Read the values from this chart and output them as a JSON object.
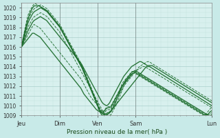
{
  "background_color": "#c8eae8",
  "plot_bg_color": "#d8f0ee",
  "grid_color_major": "#a0c8c4",
  "grid_color_minor": "#b8dcd8",
  "line_color": "#1a6b2a",
  "xlabel": "Pression niveau de la mer( hPa )",
  "ylim": [
    1009,
    1020.5
  ],
  "yticks": [
    1009,
    1010,
    1011,
    1012,
    1013,
    1014,
    1015,
    1016,
    1017,
    1018,
    1019,
    1020
  ],
  "xtick_labels": [
    "Jeu",
    "Dim",
    "Ven",
    "Sam",
    "Lun"
  ],
  "xtick_positions": [
    0,
    24,
    48,
    72,
    120
  ],
  "xlim": [
    0,
    120
  ],
  "figsize": [
    3.2,
    2.0
  ],
  "dpi": 100,
  "line_styles": [
    "-",
    "--",
    "-",
    "--",
    "-",
    "--",
    "-",
    "--"
  ],
  "line_widths": [
    1.0,
    0.7,
    1.0,
    0.7,
    1.0,
    0.7,
    1.0,
    0.7
  ],
  "lines": [
    [
      1016.0,
      1016.2,
      1016.4,
      1016.6,
      1016.8,
      1017.0,
      1017.2,
      1017.4,
      1017.4,
      1017.3,
      1017.2,
      1017.1,
      1017.0,
      1016.8,
      1016.6,
      1016.4,
      1016.2,
      1016.0,
      1015.8,
      1015.6,
      1015.4,
      1015.2,
      1015.0,
      1014.8,
      1014.6,
      1014.4,
      1014.2,
      1014.0,
      1013.8,
      1013.6,
      1013.4,
      1013.2,
      1013.0,
      1012.8,
      1012.6,
      1012.4,
      1012.2,
      1012.0,
      1011.8,
      1011.5,
      1011.2,
      1011.0,
      1010.8,
      1010.6,
      1010.4,
      1010.2,
      1010.0,
      1009.8,
      1009.6,
      1009.5,
      1009.4,
      1009.3,
      1009.2,
      1009.1,
      1009.0,
      1009.1,
      1009.2,
      1009.4,
      1009.6,
      1009.8,
      1010.0,
      1010.2,
      1010.4,
      1010.6,
      1010.8,
      1011.0,
      1011.2,
      1011.4,
      1011.6,
      1011.8,
      1012.0,
      1012.2,
      1012.4,
      1012.6,
      1012.8,
      1013.0,
      1013.2,
      1013.4,
      1013.6,
      1013.8,
      1014.0,
      1014.0,
      1014.0,
      1013.9,
      1013.8,
      1013.7,
      1013.6,
      1013.5,
      1013.4,
      1013.3,
      1013.2,
      1013.1,
      1013.0,
      1012.9,
      1012.8,
      1012.7,
      1012.6,
      1012.5,
      1012.4,
      1012.3,
      1012.2,
      1012.1,
      1012.0,
      1011.9,
      1011.8,
      1011.7,
      1011.6,
      1011.5,
      1011.4,
      1011.3,
      1011.2,
      1011.1,
      1011.0,
      1010.9,
      1010.8,
      1010.7,
      1010.6,
      1010.5,
      1010.4,
      1010.3,
      1010.2,
      1010.1,
      1010.0
    ],
    [
      1016.0,
      1016.3,
      1016.6,
      1016.9,
      1017.2,
      1017.5,
      1017.8,
      1018.1,
      1018.3,
      1018.2,
      1018.1,
      1018.0,
      1017.9,
      1017.7,
      1017.5,
      1017.3,
      1017.1,
      1016.9,
      1016.7,
      1016.5,
      1016.3,
      1016.1,
      1015.9,
      1015.7,
      1015.5,
      1015.3,
      1015.1,
      1014.9,
      1014.7,
      1014.5,
      1014.3,
      1014.1,
      1013.9,
      1013.7,
      1013.5,
      1013.3,
      1013.1,
      1012.9,
      1012.7,
      1012.4,
      1012.1,
      1011.8,
      1011.5,
      1011.2,
      1010.9,
      1010.7,
      1010.5,
      1010.3,
      1010.1,
      1009.9,
      1009.7,
      1009.5,
      1009.3,
      1009.2,
      1009.1,
      1009.2,
      1009.4,
      1009.6,
      1009.9,
      1010.2,
      1010.5,
      1010.8,
      1011.1,
      1011.4,
      1011.7,
      1012.0,
      1012.2,
      1012.4,
      1012.6,
      1012.8,
      1013.0,
      1013.2,
      1013.4,
      1013.6,
      1013.8,
      1014.0,
      1014.1,
      1014.2,
      1014.3,
      1014.4,
      1014.5,
      1014.5,
      1014.4,
      1014.3,
      1014.2,
      1014.1,
      1014.0,
      1013.9,
      1013.8,
      1013.7,
      1013.6,
      1013.5,
      1013.4,
      1013.3,
      1013.2,
      1013.1,
      1013.0,
      1012.9,
      1012.8,
      1012.7,
      1012.6,
      1012.5,
      1012.4,
      1012.3,
      1012.2,
      1012.1,
      1012.0,
      1011.9,
      1011.8,
      1011.7,
      1011.6,
      1011.5,
      1011.4,
      1011.3,
      1011.2,
      1011.1,
      1011.0,
      1010.9,
      1010.8,
      1010.7,
      1010.6,
      1010.5
    ],
    [
      1016.0,
      1016.4,
      1016.8,
      1017.2,
      1017.6,
      1017.9,
      1018.2,
      1018.5,
      1018.7,
      1018.8,
      1018.9,
      1019.0,
      1019.1,
      1019.0,
      1018.9,
      1018.8,
      1018.7,
      1018.5,
      1018.3,
      1018.1,
      1017.9,
      1017.7,
      1017.5,
      1017.3,
      1017.1,
      1016.9,
      1016.7,
      1016.5,
      1016.3,
      1016.1,
      1015.9,
      1015.7,
      1015.5,
      1015.3,
      1015.1,
      1014.9,
      1014.7,
      1014.5,
      1014.3,
      1014.0,
      1013.7,
      1013.4,
      1013.1,
      1012.8,
      1012.5,
      1012.2,
      1011.9,
      1011.6,
      1011.3,
      1011.0,
      1010.7,
      1010.4,
      1010.2,
      1010.1,
      1010.0,
      1010.1,
      1010.3,
      1010.6,
      1010.9,
      1011.2,
      1011.5,
      1011.8,
      1012.1,
      1012.4,
      1012.7,
      1013.0,
      1013.2,
      1013.4,
      1013.6,
      1013.8,
      1014.0,
      1014.1,
      1014.2,
      1014.3,
      1014.4,
      1014.5,
      1014.5,
      1014.4,
      1014.3,
      1014.2,
      1014.1,
      1014.1,
      1014.1,
      1014.1,
      1014.0,
      1013.9,
      1013.8,
      1013.7,
      1013.6,
      1013.5,
      1013.4,
      1013.3,
      1013.2,
      1013.1,
      1013.0,
      1012.9,
      1012.8,
      1012.7,
      1012.6,
      1012.5,
      1012.4,
      1012.3,
      1012.2,
      1012.1,
      1012.0,
      1011.9,
      1011.8,
      1011.7,
      1011.6,
      1011.5,
      1011.4,
      1011.3,
      1011.2,
      1011.1,
      1011.0,
      1010.9,
      1010.8,
      1010.7,
      1010.6,
      1010.5,
      1010.4,
      1010.3
    ],
    [
      1016.0,
      1016.5,
      1017.0,
      1017.5,
      1018.0,
      1018.3,
      1018.6,
      1018.9,
      1019.1,
      1019.2,
      1019.3,
      1019.4,
      1019.5,
      1019.4,
      1019.3,
      1019.2,
      1019.1,
      1018.9,
      1018.7,
      1018.5,
      1018.3,
      1018.1,
      1017.9,
      1017.7,
      1017.5,
      1017.2,
      1016.9,
      1016.6,
      1016.3,
      1016.0,
      1015.7,
      1015.4,
      1015.1,
      1014.8,
      1014.5,
      1014.2,
      1013.9,
      1013.6,
      1013.3,
      1013.0,
      1012.7,
      1012.4,
      1012.1,
      1011.8,
      1011.5,
      1011.2,
      1010.9,
      1010.6,
      1010.3,
      1010.0,
      1009.7,
      1009.4,
      1009.2,
      1009.1,
      1009.0,
      1009.0,
      1009.1,
      1009.4,
      1009.7,
      1010.0,
      1010.4,
      1010.8,
      1011.2,
      1011.6,
      1012.0,
      1012.4,
      1012.6,
      1012.8,
      1013.0,
      1013.2,
      1013.4,
      1013.5,
      1013.6,
      1013.7,
      1013.8,
      1013.9,
      1014.0,
      1014.0,
      1013.9,
      1013.8,
      1013.7,
      1013.6,
      1013.5,
      1013.4,
      1013.3,
      1013.2,
      1013.1,
      1013.0,
      1012.9,
      1012.8,
      1012.7,
      1012.6,
      1012.5,
      1012.4,
      1012.3,
      1012.2,
      1012.1,
      1012.0,
      1011.9,
      1011.8,
      1011.7,
      1011.6,
      1011.5,
      1011.4,
      1011.3,
      1011.2,
      1011.1,
      1011.0,
      1010.9,
      1010.8,
      1010.7,
      1010.6,
      1010.5,
      1010.4,
      1010.3,
      1010.2,
      1010.1,
      1010.0,
      1009.9,
      1009.8
    ],
    [
      1016.0,
      1016.6,
      1017.2,
      1017.8,
      1018.4,
      1018.8,
      1019.1,
      1019.4,
      1019.6,
      1019.7,
      1019.8,
      1019.9,
      1020.0,
      1019.9,
      1019.8,
      1019.7,
      1019.6,
      1019.4,
      1019.2,
      1019.0,
      1018.8,
      1018.6,
      1018.4,
      1018.2,
      1018.0,
      1017.7,
      1017.4,
      1017.1,
      1016.8,
      1016.5,
      1016.2,
      1015.9,
      1015.6,
      1015.3,
      1015.0,
      1014.7,
      1014.4,
      1014.1,
      1013.8,
      1013.4,
      1013.0,
      1012.6,
      1012.2,
      1011.8,
      1011.4,
      1011.0,
      1010.6,
      1010.2,
      1009.8,
      1009.4,
      1009.1,
      1009.0,
      1009.1,
      1009.2,
      1009.3,
      1009.3,
      1009.4,
      1009.7,
      1010.0,
      1010.4,
      1010.8,
      1011.2,
      1011.6,
      1012.0,
      1012.3,
      1012.6,
      1012.8,
      1013.0,
      1013.2,
      1013.4,
      1013.5,
      1013.6,
      1013.5,
      1013.4,
      1013.3,
      1013.2,
      1013.1,
      1013.0,
      1012.9,
      1012.8,
      1012.7,
      1012.6,
      1012.5,
      1012.4,
      1012.3,
      1012.2,
      1012.1,
      1012.0,
      1011.9,
      1011.8,
      1011.7,
      1011.6,
      1011.5,
      1011.4,
      1011.3,
      1011.2,
      1011.1,
      1011.0,
      1010.9,
      1010.8,
      1010.7,
      1010.6,
      1010.5,
      1010.4,
      1010.3,
      1010.2,
      1010.1,
      1010.0,
      1009.9,
      1009.8,
      1009.7,
      1009.6,
      1009.5,
      1009.4,
      1009.3,
      1009.2,
      1009.1,
      1009.0,
      1009.0,
      1009.1
    ],
    [
      1016.0,
      1016.7,
      1017.4,
      1018.1,
      1018.7,
      1019.1,
      1019.4,
      1019.7,
      1019.9,
      1020.0,
      1020.1,
      1020.2,
      1020.3,
      1020.2,
      1020.1,
      1020.0,
      1019.9,
      1019.7,
      1019.5,
      1019.3,
      1019.1,
      1018.9,
      1018.7,
      1018.5,
      1018.3,
      1018.0,
      1017.7,
      1017.4,
      1017.1,
      1016.8,
      1016.5,
      1016.2,
      1015.9,
      1015.6,
      1015.3,
      1015.0,
      1014.7,
      1014.4,
      1014.1,
      1013.7,
      1013.3,
      1012.9,
      1012.5,
      1012.1,
      1011.7,
      1011.3,
      1010.9,
      1010.5,
      1010.1,
      1009.7,
      1009.4,
      1009.2,
      1009.3,
      1009.5,
      1009.6,
      1009.6,
      1009.7,
      1010.0,
      1010.3,
      1010.7,
      1011.1,
      1011.5,
      1011.9,
      1012.3,
      1012.5,
      1012.7,
      1012.9,
      1013.1,
      1013.3,
      1013.5,
      1013.5,
      1013.5,
      1013.4,
      1013.3,
      1013.2,
      1013.1,
      1013.0,
      1012.9,
      1012.8,
      1012.7,
      1012.6,
      1012.5,
      1012.4,
      1012.3,
      1012.2,
      1012.1,
      1012.0,
      1011.9,
      1011.8,
      1011.7,
      1011.6,
      1011.5,
      1011.4,
      1011.3,
      1011.2,
      1011.1,
      1011.0,
      1010.9,
      1010.8,
      1010.7,
      1010.6,
      1010.5,
      1010.4,
      1010.3,
      1010.2,
      1010.1,
      1010.0,
      1009.9,
      1009.8,
      1009.7,
      1009.6,
      1009.5,
      1009.4,
      1009.3,
      1009.2,
      1009.1,
      1009.0,
      1009.1,
      1009.2,
      1009.3
    ],
    [
      1016.0,
      1016.8,
      1017.5,
      1018.2,
      1018.8,
      1019.3,
      1019.7,
      1020.0,
      1020.2,
      1020.2,
      1020.2,
      1020.2,
      1020.1,
      1020.0,
      1019.9,
      1019.8,
      1019.7,
      1019.5,
      1019.3,
      1019.1,
      1018.9,
      1018.7,
      1018.5,
      1018.3,
      1018.1,
      1017.8,
      1017.5,
      1017.2,
      1016.9,
      1016.6,
      1016.3,
      1016.0,
      1015.7,
      1015.4,
      1015.1,
      1014.8,
      1014.5,
      1014.2,
      1013.9,
      1013.5,
      1013.1,
      1012.7,
      1012.3,
      1011.9,
      1011.5,
      1011.1,
      1010.7,
      1010.3,
      1009.9,
      1009.5,
      1009.3,
      1009.3,
      1009.5,
      1009.7,
      1009.8,
      1009.8,
      1009.9,
      1010.2,
      1010.5,
      1010.8,
      1011.1,
      1011.4,
      1011.7,
      1012.0,
      1012.2,
      1012.4,
      1012.6,
      1012.8,
      1013.0,
      1013.2,
      1013.3,
      1013.4,
      1013.3,
      1013.2,
      1013.1,
      1013.0,
      1012.9,
      1012.8,
      1012.7,
      1012.6,
      1012.5,
      1012.4,
      1012.3,
      1012.2,
      1012.1,
      1012.0,
      1011.9,
      1011.8,
      1011.7,
      1011.6,
      1011.5,
      1011.4,
      1011.3,
      1011.2,
      1011.1,
      1011.0,
      1010.9,
      1010.8,
      1010.7,
      1010.6,
      1010.5,
      1010.4,
      1010.3,
      1010.2,
      1010.1,
      1010.0,
      1009.9,
      1009.8,
      1009.7,
      1009.6,
      1009.5,
      1009.4,
      1009.3,
      1009.2,
      1009.1,
      1009.0,
      1009.1,
      1009.2,
      1009.4,
      1009.5
    ],
    [
      1016.0,
      1016.9,
      1017.7,
      1018.5,
      1019.2,
      1019.6,
      1019.9,
      1020.2,
      1020.4,
      1020.4,
      1020.3,
      1020.2,
      1020.1,
      1020.0,
      1019.9,
      1019.8,
      1019.7,
      1019.5,
      1019.3,
      1019.1,
      1018.9,
      1018.7,
      1018.5,
      1018.3,
      1018.1,
      1017.8,
      1017.5,
      1017.2,
      1016.9,
      1016.6,
      1016.3,
      1016.0,
      1015.7,
      1015.4,
      1015.1,
      1014.8,
      1014.5,
      1014.2,
      1013.9,
      1013.5,
      1013.1,
      1012.7,
      1012.3,
      1011.9,
      1011.5,
      1011.1,
      1010.7,
      1010.3,
      1009.9,
      1009.5,
      1009.3,
      1009.4,
      1009.6,
      1009.8,
      1009.9,
      1009.9,
      1010.0,
      1010.3,
      1010.6,
      1010.9,
      1011.2,
      1011.5,
      1011.8,
      1012.1,
      1012.3,
      1012.5,
      1012.7,
      1012.9,
      1013.1,
      1013.3,
      1013.3,
      1013.3,
      1013.2,
      1013.1,
      1013.0,
      1012.9,
      1012.8,
      1012.7,
      1012.6,
      1012.5,
      1012.4,
      1012.3,
      1012.2,
      1012.1,
      1012.0,
      1011.9,
      1011.8,
      1011.7,
      1011.6,
      1011.5,
      1011.4,
      1011.3,
      1011.2,
      1011.1,
      1011.0,
      1010.9,
      1010.8,
      1010.7,
      1010.6,
      1010.5,
      1010.4,
      1010.3,
      1010.2,
      1010.1,
      1010.0,
      1009.9,
      1009.8,
      1009.7,
      1009.6,
      1009.5,
      1009.4,
      1009.3,
      1009.2,
      1009.1,
      1009.0,
      1009.1,
      1009.3,
      1009.5,
      1009.7,
      1009.8
    ]
  ]
}
